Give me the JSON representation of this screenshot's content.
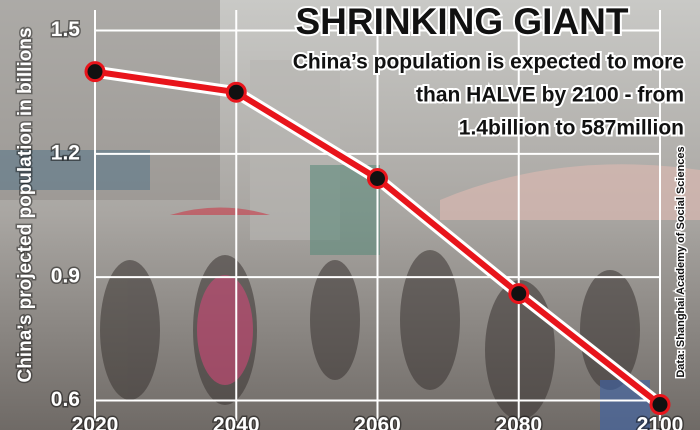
{
  "chart_data": {
    "type": "line",
    "title": "SHRINKING GIANT",
    "subtitle": [
      "China’s population is expected to more",
      "than HALVE by 2100 - from",
      "1.4billion to 587million"
    ],
    "y_label": "China’s projected population in billions",
    "source": "Data: Shanghai Academy of Social Sciences",
    "x": [
      2020,
      2040,
      2060,
      2080,
      2100
    ],
    "series": [
      {
        "name": "Population",
        "color": "#e8141b",
        "values": [
          1.4,
          1.35,
          1.14,
          0.86,
          0.59
        ]
      }
    ],
    "xlim": [
      2020,
      2100
    ],
    "xticks": [
      2020,
      2040,
      2060,
      2080,
      2100
    ],
    "ylim": [
      0.55,
      1.55
    ],
    "yticks": [
      0.6,
      0.9,
      1.2,
      1.5
    ],
    "grid": true
  }
}
